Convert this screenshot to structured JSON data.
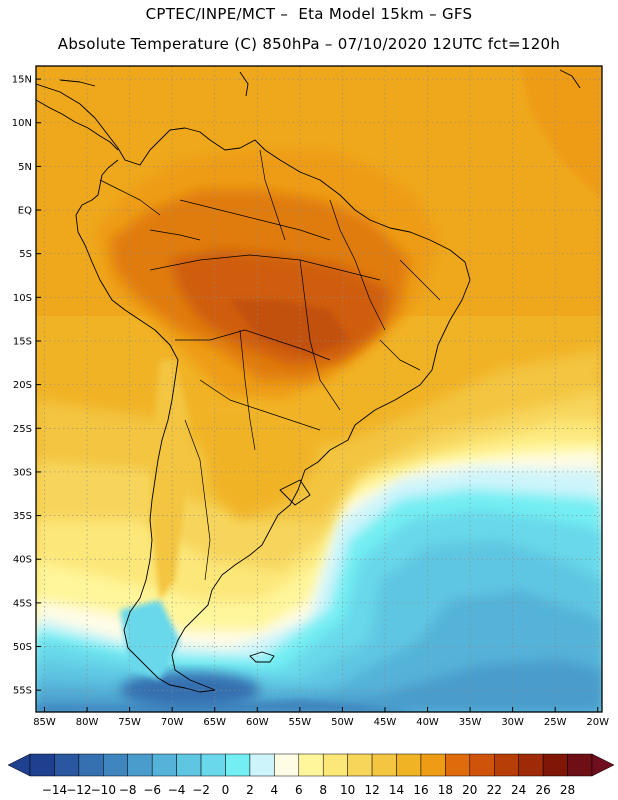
{
  "header": {
    "line1": "CPTEC/INPE/MCT –  Eta Model 15km – GFS",
    "line2": "Absolute Temperature (C) 850hPa – 07/10/2020 12UTC fct=120h"
  },
  "map": {
    "lat_labels": [
      "15N",
      "10N",
      "5N",
      "EQ",
      "5S",
      "10S",
      "15S",
      "20S",
      "25S",
      "30S",
      "35S",
      "40S",
      "45S",
      "50S",
      "55S"
    ],
    "lon_labels": [
      "85W",
      "80W",
      "75W",
      "70W",
      "65W",
      "60W",
      "55W",
      "50W",
      "45W",
      "40W",
      "35W",
      "30W",
      "25W",
      "20W"
    ],
    "lat_range": [
      16.5,
      -57.5
    ],
    "lon_range": [
      -86,
      -19.5
    ]
  },
  "colorbar": {
    "labels": [
      "-14",
      "-12",
      "-10",
      "-8",
      "-6",
      "-4",
      "-2",
      "0",
      "2",
      "4",
      "6",
      "8",
      "10",
      "12",
      "14",
      "16",
      "18",
      "20",
      "22",
      "24",
      "26",
      "28"
    ],
    "colors": [
      "#1f3f8f",
      "#2a57a0",
      "#3570b0",
      "#3f86bf",
      "#4a9ccc",
      "#55b2d8",
      "#5fc6e2",
      "#68d8ea",
      "#73eef2",
      "#cdf4fb",
      "#fffce6",
      "#fff59a",
      "#fce779",
      "#f7d55b",
      "#f3c541",
      "#f1b326",
      "#ee9c15",
      "#e06b0c",
      "#cf530a",
      "#b83e08",
      "#9e2a07",
      "#7f1606",
      "#6e0f15"
    ]
  },
  "temperature_fields": {
    "ocean_atlantic_south": "6 to -2",
    "amazon_core": "22 to 24",
    "southern_ocean": "-2 to -10"
  }
}
